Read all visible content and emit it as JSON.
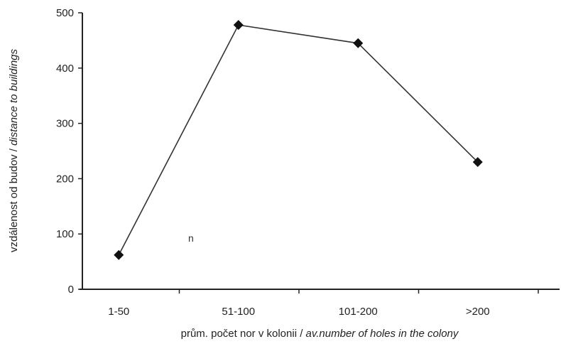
{
  "chart_data": {
    "type": "line",
    "title": "",
    "xlabel": {
      "normal": "prům. počet nor v kolonii / ",
      "italic": "av.number of holes in the colony"
    },
    "ylabel": {
      "normal": "vzdálenost od budov / ",
      "italic": "distance to buildings"
    },
    "categories": [
      "1-50",
      "51-100",
      "101-200",
      ">200"
    ],
    "series": [
      {
        "values": [
          62,
          478,
          445,
          230
        ],
        "color": "#333333",
        "marker": "diamond"
      }
    ],
    "ylim": [
      0,
      500
    ],
    "yticks": [
      0,
      100,
      200,
      300,
      400,
      500
    ],
    "grid": false,
    "legend": "none",
    "annotation": "n"
  }
}
